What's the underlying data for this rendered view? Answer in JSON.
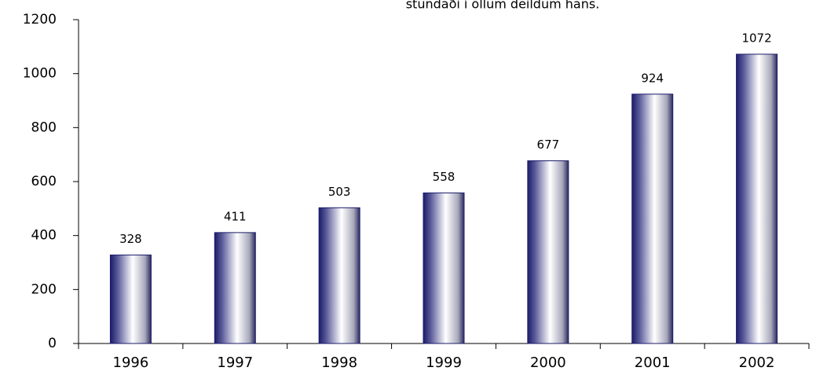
{
  "chart_data": {
    "type": "bar",
    "title": "stundaði í öllum deildum hans.",
    "categories": [
      "1996",
      "1997",
      "1998",
      "1999",
      "2000",
      "2001",
      "2002"
    ],
    "values": [
      328,
      411,
      503,
      558,
      677,
      924,
      1072
    ],
    "ylim": [
      0,
      1200
    ],
    "yticks": [
      0,
      200,
      400,
      600,
      800,
      1000,
      1200
    ],
    "color": "#1c1c6a",
    "grid": false
  }
}
